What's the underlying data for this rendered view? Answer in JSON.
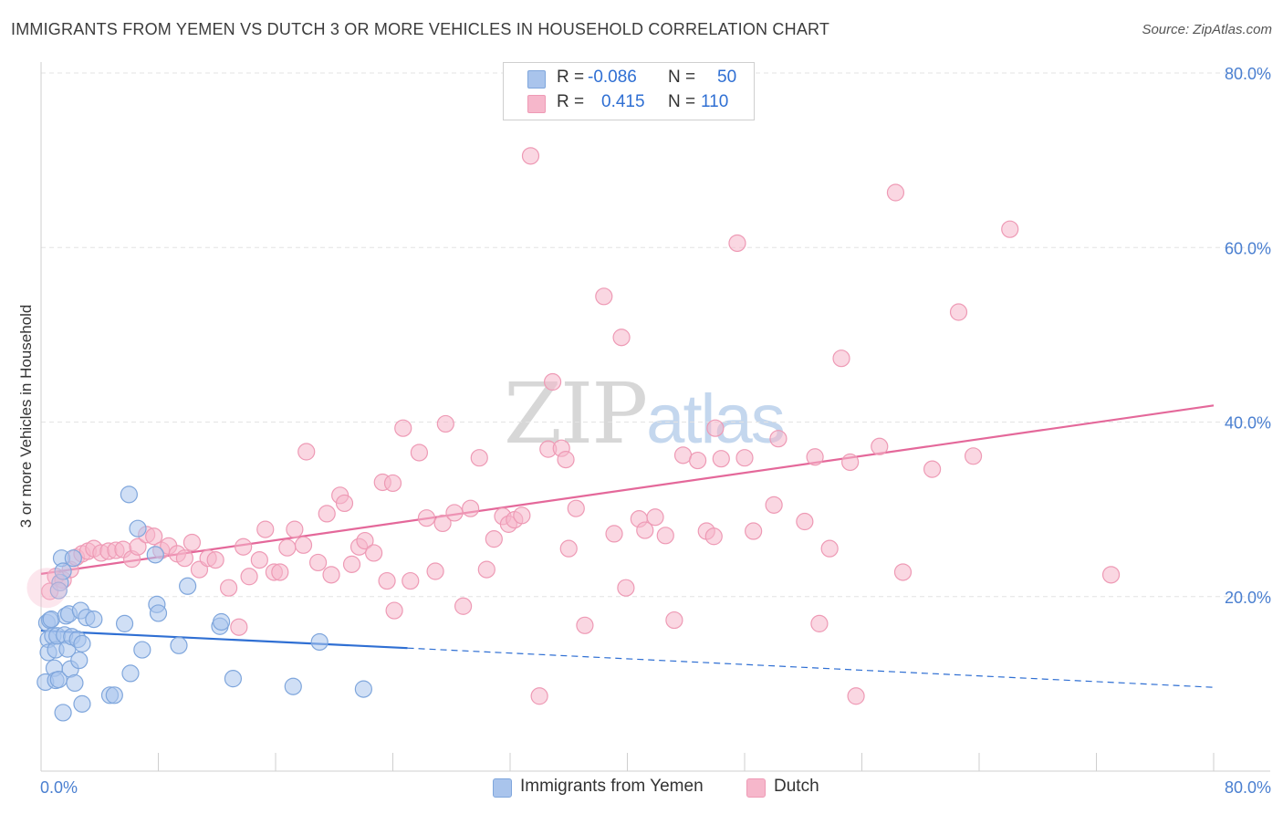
{
  "title": "IMMIGRANTS FROM YEMEN VS DUTCH 3 OR MORE VEHICLES IN HOUSEHOLD CORRELATION CHART",
  "source": "Source: ZipAtlas.com",
  "watermark": {
    "part1": "ZIP",
    "part2": "atlas"
  },
  "legend": {
    "rows": [
      {
        "r_label": "R =",
        "r_value": "-0.086",
        "n_label": "N =",
        "n_value": "50"
      },
      {
        "r_label": "R =",
        "r_value": "0.415",
        "n_label": "N =",
        "n_value": "110"
      }
    ]
  },
  "bottom_legend": [
    "Immigrants from Yemen",
    "Dutch"
  ],
  "colors": {
    "yemen_fill": "#a9c4ec",
    "yemen_stroke": "#7fa6dc",
    "yemen_line": "#2f6fd3",
    "dutch_fill": "#f6b7cb",
    "dutch_stroke": "#ee9ab5",
    "dutch_line": "#e4689a",
    "grid": "#e3e3e3",
    "axis_label": "#4a7fd0"
  },
  "chart_data": {
    "type": "scatter",
    "title": "IMMIGRANTS FROM YEMEN VS DUTCH 3 OR MORE VEHICLES IN HOUSEHOLD CORRELATION CHART",
    "xlabel": "",
    "ylabel": "3 or more Vehicles in Household",
    "xlim": [
      0,
      80
    ],
    "ylim": [
      0,
      80
    ],
    "x_tick_labels": [
      "0.0%",
      "80.0%"
    ],
    "y_ticks": [
      20,
      40,
      60,
      80
    ],
    "y_tick_labels": [
      "20.0%",
      "40.0%",
      "60.0%",
      "80.0%"
    ],
    "grid": true,
    "series": [
      {
        "name": "Immigrants from Yemen",
        "r": -0.086,
        "n": 50,
        "trend": {
          "x": [
            0,
            25
          ],
          "y": [
            16.1,
            14.1
          ],
          "dashed_to": [
            80,
            9.6
          ]
        },
        "points": [
          [
            0.3,
            10.2
          ],
          [
            0.4,
            17.0
          ],
          [
            0.5,
            15.1
          ],
          [
            0.5,
            13.6
          ],
          [
            0.6,
            17.3
          ],
          [
            0.7,
            17.4
          ],
          [
            0.8,
            15.5
          ],
          [
            0.9,
            11.8
          ],
          [
            1.0,
            13.9
          ],
          [
            1.0,
            10.4
          ],
          [
            1.1,
            15.5
          ],
          [
            1.2,
            10.5
          ],
          [
            1.3,
            21.6
          ],
          [
            1.4,
            24.4
          ],
          [
            1.5,
            6.7
          ],
          [
            1.5,
            22.9
          ],
          [
            1.6,
            15.6
          ],
          [
            1.7,
            17.8
          ],
          [
            1.8,
            14.0
          ],
          [
            1.9,
            18.0
          ],
          [
            2.0,
            11.7
          ],
          [
            2.1,
            15.4
          ],
          [
            2.2,
            24.4
          ],
          [
            2.3,
            10.1
          ],
          [
            2.5,
            15.1
          ],
          [
            2.6,
            12.7
          ],
          [
            2.7,
            18.4
          ],
          [
            2.8,
            7.7
          ],
          [
            2.8,
            14.6
          ],
          [
            3.1,
            17.6
          ],
          [
            3.6,
            17.4
          ],
          [
            4.7,
            8.7
          ],
          [
            5.0,
            8.7
          ],
          [
            5.7,
            16.9
          ],
          [
            6.1,
            11.2
          ],
          [
            6.0,
            31.7
          ],
          [
            6.9,
            13.9
          ],
          [
            7.8,
            24.8
          ],
          [
            7.9,
            19.1
          ],
          [
            8.0,
            18.1
          ],
          [
            9.4,
            14.4
          ],
          [
            10.0,
            21.2
          ],
          [
            12.2,
            16.6
          ],
          [
            12.3,
            17.1
          ],
          [
            13.1,
            10.6
          ],
          [
            17.2,
            9.7
          ],
          [
            19.0,
            14.8
          ],
          [
            22.0,
            9.4
          ],
          [
            6.6,
            27.8
          ],
          [
            1.2,
            20.7
          ]
        ]
      },
      {
        "name": "Dutch",
        "r": 0.415,
        "n": 110,
        "trend": {
          "x": [
            0,
            80
          ],
          "y": [
            22.6,
            41.9
          ]
        },
        "points": [
          [
            0.6,
            20.6
          ],
          [
            1.0,
            22.3
          ],
          [
            1.5,
            21.9
          ],
          [
            2.0,
            23.1
          ],
          [
            2.4,
            24.5
          ],
          [
            2.8,
            24.9
          ],
          [
            3.2,
            25.2
          ],
          [
            3.6,
            25.5
          ],
          [
            4.1,
            25.0
          ],
          [
            4.6,
            25.2
          ],
          [
            5.1,
            25.3
          ],
          [
            5.6,
            25.4
          ],
          [
            6.2,
            24.3
          ],
          [
            6.6,
            25.7
          ],
          [
            7.2,
            27.1
          ],
          [
            7.7,
            26.9
          ],
          [
            8.2,
            25.3
          ],
          [
            8.7,
            25.8
          ],
          [
            9.3,
            24.9
          ],
          [
            9.8,
            24.4
          ],
          [
            10.3,
            26.2
          ],
          [
            10.8,
            23.1
          ],
          [
            11.4,
            24.4
          ],
          [
            11.9,
            24.2
          ],
          [
            12.8,
            21.0
          ],
          [
            13.5,
            16.5
          ],
          [
            13.8,
            25.7
          ],
          [
            14.2,
            22.3
          ],
          [
            14.9,
            24.2
          ],
          [
            15.3,
            27.7
          ],
          [
            15.9,
            22.8
          ],
          [
            16.3,
            22.8
          ],
          [
            16.8,
            25.6
          ],
          [
            17.3,
            27.7
          ],
          [
            17.9,
            25.9
          ],
          [
            18.1,
            36.6
          ],
          [
            18.9,
            23.9
          ],
          [
            19.5,
            29.5
          ],
          [
            19.8,
            22.5
          ],
          [
            20.4,
            31.6
          ],
          [
            20.7,
            30.7
          ],
          [
            21.2,
            23.7
          ],
          [
            21.7,
            25.7
          ],
          [
            22.1,
            26.4
          ],
          [
            22.7,
            25.0
          ],
          [
            23.3,
            33.1
          ],
          [
            23.6,
            21.8
          ],
          [
            24.1,
            18.4
          ],
          [
            24.7,
            39.3
          ],
          [
            25.2,
            21.8
          ],
          [
            25.8,
            36.5
          ],
          [
            26.3,
            29.0
          ],
          [
            26.9,
            22.9
          ],
          [
            27.4,
            28.4
          ],
          [
            27.6,
            39.8
          ],
          [
            28.2,
            29.6
          ],
          [
            28.8,
            18.9
          ],
          [
            29.3,
            30.1
          ],
          [
            29.9,
            35.9
          ],
          [
            30.4,
            23.1
          ],
          [
            30.9,
            26.6
          ],
          [
            31.5,
            29.2
          ],
          [
            31.9,
            28.3
          ],
          [
            32.3,
            28.8
          ],
          [
            32.8,
            29.3
          ],
          [
            34.0,
            8.6
          ],
          [
            34.6,
            36.9
          ],
          [
            34.9,
            44.6
          ],
          [
            35.5,
            37.0
          ],
          [
            35.8,
            35.7
          ],
          [
            36.0,
            25.5
          ],
          [
            36.5,
            30.1
          ],
          [
            37.1,
            16.7
          ],
          [
            38.4,
            54.4
          ],
          [
            39.1,
            27.2
          ],
          [
            39.6,
            49.7
          ],
          [
            39.9,
            21.0
          ],
          [
            40.8,
            28.9
          ],
          [
            41.2,
            27.6
          ],
          [
            41.9,
            29.1
          ],
          [
            42.6,
            27.0
          ],
          [
            43.2,
            17.3
          ],
          [
            43.8,
            36.2
          ],
          [
            44.8,
            35.6
          ],
          [
            45.4,
            27.5
          ],
          [
            45.9,
            26.9
          ],
          [
            46.4,
            35.8
          ],
          [
            47.5,
            60.5
          ],
          [
            48.0,
            35.9
          ],
          [
            48.6,
            27.5
          ],
          [
            50.0,
            30.5
          ],
          [
            50.3,
            38.1
          ],
          [
            52.1,
            28.6
          ],
          [
            52.8,
            36.0
          ],
          [
            53.1,
            16.9
          ],
          [
            53.8,
            25.5
          ],
          [
            54.6,
            47.3
          ],
          [
            55.2,
            35.4
          ],
          [
            55.6,
            8.6
          ],
          [
            57.2,
            37.2
          ],
          [
            58.3,
            66.3
          ],
          [
            58.8,
            22.8
          ],
          [
            60.8,
            34.6
          ],
          [
            62.6,
            52.6
          ],
          [
            63.6,
            36.1
          ],
          [
            66.1,
            62.1
          ],
          [
            73.0,
            22.5
          ],
          [
            33.4,
            70.5
          ],
          [
            24.0,
            33.0
          ],
          [
            46.0,
            39.3
          ]
        ]
      }
    ]
  }
}
